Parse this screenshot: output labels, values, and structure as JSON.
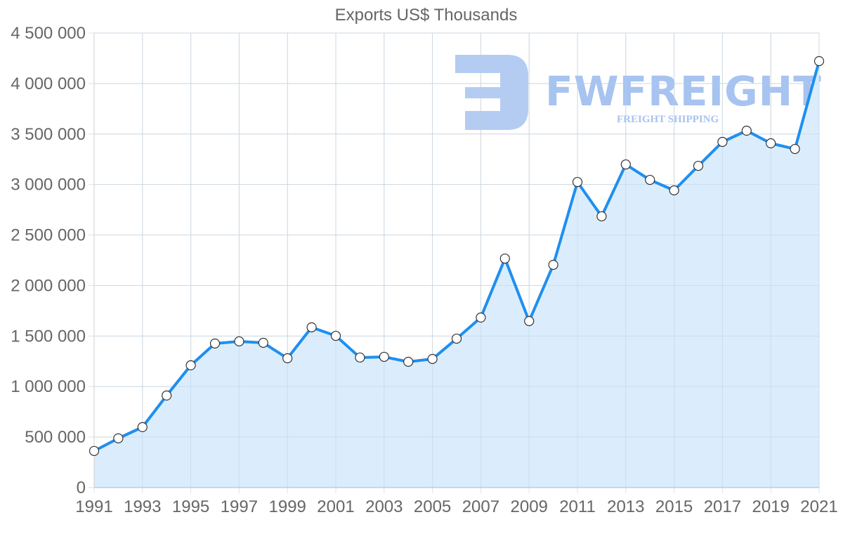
{
  "chart_data": {
    "type": "line",
    "title": "Exports US$ Thousands",
    "xlabel": "",
    "ylabel": "",
    "x": [
      1991,
      1992,
      1993,
      1994,
      1995,
      1996,
      1997,
      1998,
      1999,
      2000,
      2001,
      2002,
      2003,
      2004,
      2005,
      2006,
      2007,
      2008,
      2009,
      2010,
      2011,
      2012,
      2013,
      2014,
      2015,
      2016,
      2017,
      2018,
      2019,
      2020,
      2021
    ],
    "series": [
      {
        "name": "Exports US$ Thousands",
        "values": [
          362000,
          487000,
          598000,
          911000,
          1210000,
          1426000,
          1447000,
          1433000,
          1280000,
          1586000,
          1502000,
          1287000,
          1294000,
          1245000,
          1273000,
          1474000,
          1683000,
          2267000,
          1648000,
          2205000,
          3025000,
          2685000,
          3199000,
          3046000,
          2942000,
          3185000,
          3422000,
          3533000,
          3408000,
          3352000,
          4222000
        ],
        "color": "#1e8ff0",
        "fill": "#d9ecfc",
        "filled": true,
        "markers": true
      }
    ],
    "ylim": [
      0,
      4500000
    ],
    "y_ticks": [
      "0",
      "500 000",
      "1 000 000",
      "1 500 000",
      "2 000 000",
      "2 500 000",
      "3 000 000",
      "3 500 000",
      "4 000 000",
      "4 500 000"
    ],
    "y_tick_values": [
      0,
      500000,
      1000000,
      1500000,
      2000000,
      2500000,
      3000000,
      3500000,
      4000000,
      4500000
    ],
    "x_ticks": [
      "1991",
      "1993",
      "1995",
      "1997",
      "1999",
      "2001",
      "2003",
      "2005",
      "2007",
      "2009",
      "2011",
      "2013",
      "2015",
      "2017",
      "2019",
      "2021"
    ],
    "grid": true,
    "legend": "none"
  },
  "watermark": {
    "brand": "FWFREIGHT",
    "tagline": "FREIGHT SHIPPING",
    "color": "#a7c3f0"
  }
}
